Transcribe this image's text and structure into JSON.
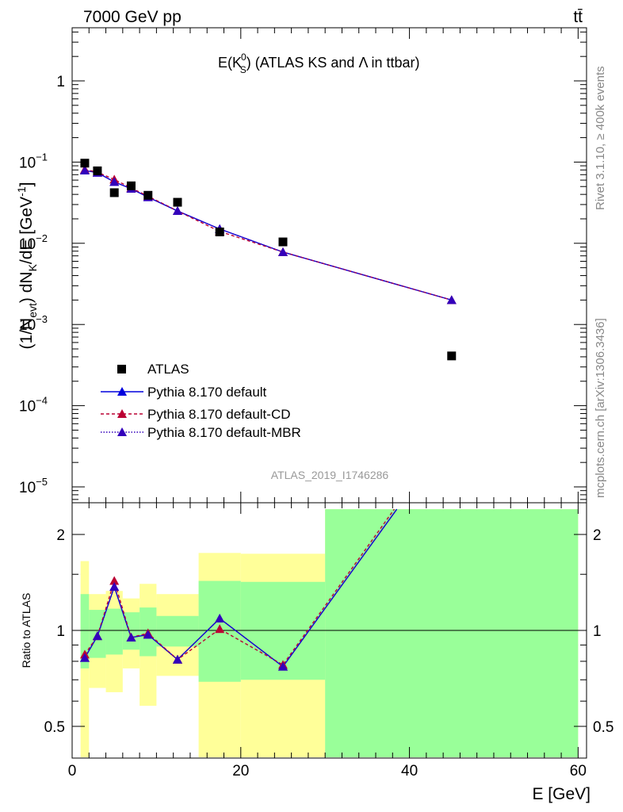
{
  "header": {
    "left": "7000 GeV pp",
    "right": "tt̄"
  },
  "side_labels": {
    "rivet": "Rivet 3.1.10, ≥ 400k events",
    "mcplots": "mcplots.cern.ch [arXiv:1306.3436]"
  },
  "watermark": "ATLAS_2019_I1746286",
  "colors": {
    "data": "#000000",
    "default": "#0000dd",
    "cd": "#bb0033",
    "mbr": "#3300bb",
    "band_inner": "#99ff99",
    "band_outer": "#ffff99"
  },
  "chart_data": [
    {
      "type": "scatter",
      "title": "E(K_S^0) (ATLAS KS and Λ in ttbar)",
      "title_parts": {
        "main": "E(K",
        "sup": "0",
        "sub": "S",
        "close": ")",
        "rest": " (ATLAS KS and Λ in ttbar)"
      },
      "ylabel": "(1/N_evt) dN_K/dE [GeV^-1]",
      "ylabel_parts": {
        "a": "(1/N",
        "a_sub": "evt",
        "b": ") dN",
        "b_sub": "K",
        "c": "/dE [GeV",
        "c_sup": "-1",
        "d": "]"
      },
      "yscale": "log",
      "ylim": [
        7e-06,
        5
      ],
      "xlim": [
        0,
        61
      ],
      "y_ticks": [
        {
          "v": 1,
          "base": "1",
          "exp": ""
        },
        {
          "v": 0.1,
          "base": "10",
          "exp": "−1"
        },
        {
          "v": 0.01,
          "base": "10",
          "exp": "−2"
        },
        {
          "v": 0.001,
          "base": "10",
          "exp": "−3"
        },
        {
          "v": 0.0001,
          "base": "10",
          "exp": "−4"
        },
        {
          "v": 1e-05,
          "base": "10",
          "exp": "−5"
        }
      ],
      "legend_position": "lower-left",
      "legend": [
        "ATLAS",
        "Pythia 8.170 default",
        "Pythia 8.170 default-CD",
        "Pythia 8.170 default-MBR"
      ],
      "series": [
        {
          "name": "ATLAS",
          "x": [
            1.5,
            3,
            5,
            7,
            9,
            12.5,
            17.5,
            25,
            45
          ],
          "y": [
            0.097,
            0.078,
            0.042,
            0.051,
            0.039,
            0.032,
            0.0138,
            0.0104,
            0.00041
          ]
        },
        {
          "name": "Pythia 8.170 default",
          "x": [
            1.5,
            3,
            5,
            7,
            9,
            12.5,
            17.5,
            25,
            45
          ],
          "y": [
            0.079,
            0.074,
            0.057,
            0.047,
            0.037,
            0.025,
            0.015,
            0.0078,
            0.002
          ]
        },
        {
          "name": "Pythia 8.170 default-CD",
          "x": [
            1.5,
            3,
            5,
            7,
            9,
            12.5,
            17.5,
            25,
            45
          ],
          "y": [
            0.081,
            0.075,
            0.061,
            0.048,
            0.038,
            0.025,
            0.014,
            0.0078,
            0.002
          ]
        },
        {
          "name": "Pythia 8.170 default-MBR",
          "x": [
            1.5,
            3,
            5,
            7,
            9,
            12.5,
            17.5,
            25,
            45
          ],
          "y": [
            0.079,
            0.074,
            0.057,
            0.047,
            0.037,
            0.025,
            0.015,
            0.0078,
            0.002
          ]
        }
      ]
    },
    {
      "type": "line",
      "xlabel": "E [GeV]",
      "ylabel": "Ratio to ATLAS",
      "yscale": "log",
      "ylim": [
        0.4,
        2.4
      ],
      "xlim": [
        0,
        61
      ],
      "x_ticks": [
        "0",
        "20",
        "40",
        "60"
      ],
      "y_ticks": [
        "0.5",
        "1",
        "2"
      ],
      "reference_line": 1,
      "bands": [
        {
          "xlo": 1,
          "xhi": 2,
          "inner": [
            0.76,
            1.3
          ],
          "outer": [
            0.35,
            1.65
          ]
        },
        {
          "xlo": 2,
          "xhi": 4,
          "inner": [
            0.82,
            1.16
          ],
          "outer": [
            0.66,
            1.3
          ]
        },
        {
          "xlo": 4,
          "xhi": 6,
          "inner": [
            0.84,
            1.17
          ],
          "outer": [
            0.64,
            1.33
          ]
        },
        {
          "xlo": 6,
          "xhi": 8,
          "inner": [
            0.87,
            1.14
          ],
          "outer": [
            0.76,
            1.26
          ]
        },
        {
          "xlo": 8,
          "xhi": 10,
          "inner": [
            0.83,
            1.18
          ],
          "outer": [
            0.58,
            1.4
          ]
        },
        {
          "xlo": 10,
          "xhi": 15,
          "inner": [
            0.89,
            1.11
          ],
          "outer": [
            0.72,
            1.3
          ]
        },
        {
          "xlo": 15,
          "xhi": 20,
          "inner": [
            0.69,
            1.43
          ],
          "outer": [
            0.4,
            1.75
          ]
        },
        {
          "xlo": 20,
          "xhi": 30,
          "inner": [
            0.7,
            1.42
          ],
          "outer": [
            0.4,
            1.74
          ]
        },
        {
          "xlo": 30,
          "xhi": 60,
          "inner": [
            0.4,
            2.4
          ],
          "outer": [
            0.4,
            2.4
          ]
        }
      ],
      "series": [
        {
          "name": "Pythia 8.170 default",
          "x": [
            1.5,
            3,
            5,
            7,
            9,
            12.5,
            17.5,
            25,
            38.5
          ],
          "y": [
            0.82,
            0.96,
            1.37,
            0.95,
            0.97,
            0.81,
            1.09,
            0.77,
            2.4
          ]
        },
        {
          "name": "Pythia 8.170 default-CD",
          "x": [
            1.5,
            3,
            5,
            7,
            9,
            12.5,
            17.5,
            25,
            38.2
          ],
          "y": [
            0.84,
            0.96,
            1.43,
            0.95,
            0.98,
            0.81,
            1.01,
            0.78,
            2.4
          ]
        },
        {
          "name": "Pythia 8.170 default-MBR",
          "x": [
            1.5,
            3,
            5,
            7,
            9,
            12.5,
            17.5,
            25,
            38.5
          ],
          "y": [
            0.82,
            0.96,
            1.37,
            0.95,
            0.97,
            0.81,
            1.09,
            0.77,
            2.4
          ]
        }
      ]
    }
  ]
}
